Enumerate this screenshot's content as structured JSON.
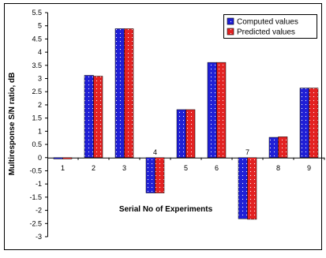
{
  "chart_data": {
    "type": "bar",
    "title": "",
    "xlabel": "Serial No of Experiments",
    "ylabel": "Multiresponse S/N ratio, dB",
    "ylim": [
      -3,
      5.5
    ],
    "ytick_step": 0.5,
    "yticks": [
      "5.5",
      "5",
      "4.5",
      "4",
      "3.5",
      "3",
      "2.5",
      "2",
      "1.5",
      "1",
      "0.5",
      "0",
      "-0.5",
      "-1",
      "-1.5",
      "-2",
      "-2.5",
      "-3"
    ],
    "categories": [
      "1",
      "2",
      "3",
      "4",
      "5",
      "6",
      "7",
      "8",
      "9"
    ],
    "series": [
      {
        "name": "Computed values",
        "color": "#1f1fd6",
        "values": [
          -0.05,
          3.12,
          4.89,
          -1.34,
          1.82,
          3.61,
          -2.32,
          0.77,
          2.64
        ]
      },
      {
        "name": "Predicted values",
        "color": "#e32222",
        "values": [
          -0.05,
          3.09,
          4.89,
          -1.34,
          1.82,
          3.61,
          -2.34,
          0.79,
          2.64
        ]
      }
    ],
    "grid": false,
    "legend": "top-right"
  }
}
